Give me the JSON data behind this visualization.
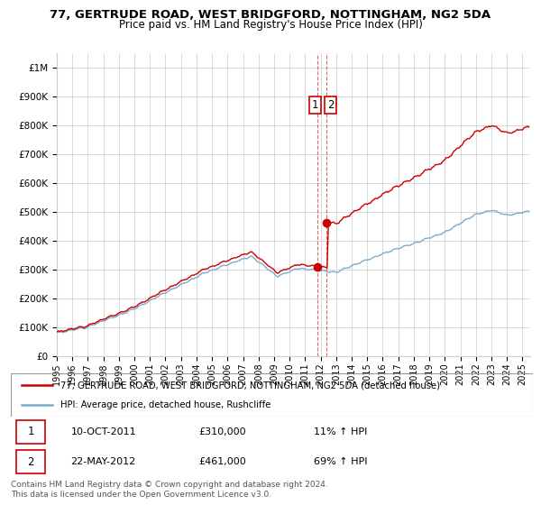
{
  "title": "77, GERTRUDE ROAD, WEST BRIDGFORD, NOTTINGHAM, NG2 5DA",
  "subtitle": "Price paid vs. HM Land Registry's House Price Index (HPI)",
  "legend_line1": "77, GERTRUDE ROAD, WEST BRIDGFORD, NOTTINGHAM, NG2 5DA (detached house)",
  "legend_line2": "HPI: Average price, detached house, Rushcliffe",
  "annotation1_date": "10-OCT-2011",
  "annotation1_price": "£310,000",
  "annotation1_hpi": "11% ↑ HPI",
  "annotation2_date": "22-MAY-2012",
  "annotation2_price": "£461,000",
  "annotation2_hpi": "69% ↑ HPI",
  "footer": "Contains HM Land Registry data © Crown copyright and database right 2024.\nThis data is licensed under the Open Government Licence v3.0.",
  "red_line_color": "#cc0000",
  "blue_line_color": "#7aadcc",
  "grid_color": "#cccccc",
  "background_color": "#ffffff",
  "ylim": [
    0,
    1050000
  ],
  "yticks": [
    0,
    100000,
    200000,
    300000,
    400000,
    500000,
    600000,
    700000,
    800000,
    900000,
    1000000
  ],
  "ytick_labels": [
    "£0",
    "£100K",
    "£200K",
    "£300K",
    "£400K",
    "£500K",
    "£600K",
    "£700K",
    "£800K",
    "£900K",
    "£1M"
  ],
  "sale1_year": 2011.78,
  "sale1_value": 310000,
  "sale2_year": 2012.39,
  "sale2_value": 461000,
  "xlim_start": 1995.0,
  "xlim_end": 2025.5
}
